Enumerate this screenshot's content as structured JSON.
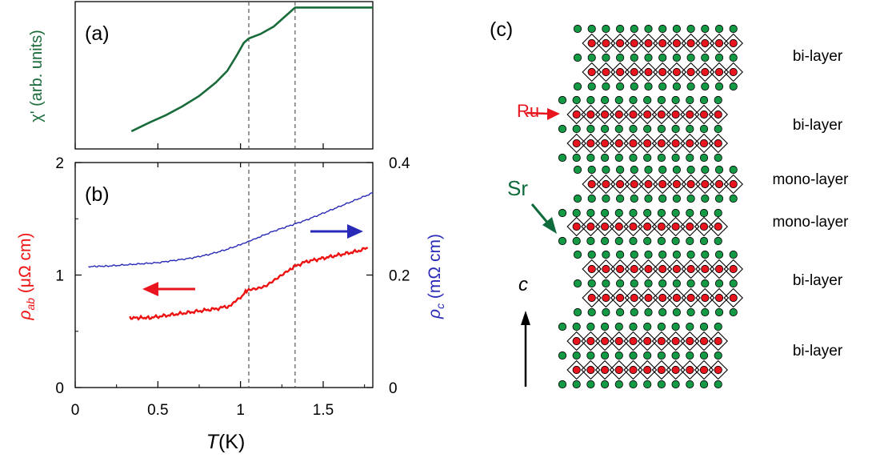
{
  "panels": {
    "a": {
      "label": "(a)",
      "ylabel": "χ' (arb. units)"
    },
    "b": {
      "label": "(b)",
      "ylabel_left_sym": "ρ",
      "ylabel_left_sub": "ab",
      "ylabel_left_unit": " (μΩ cm)",
      "ylabel_right_sym": "ρ",
      "ylabel_right_sub": "c",
      "ylabel_right_unit": " (mΩ cm)"
    },
    "c": {
      "label": "(c)"
    }
  },
  "xaxis": {
    "label_italic": "T",
    "label_unit": "(K)"
  },
  "colors": {
    "chi": "#1a6b3a",
    "rho_ab": "#ee1111",
    "rho_c": "#2a2ab8",
    "ru": "#e8141e",
    "sr": "#149a45",
    "sr_label": "#0f6b3c",
    "dashed": "#555555"
  },
  "chart_data": [
    {
      "type": "line",
      "title": "(a)",
      "ylabel": "χ' (arb. units)",
      "xlim": [
        0,
        1.8
      ],
      "ylim": [
        0,
        1
      ],
      "y_ticks_shown": false,
      "series": [
        {
          "x": [
            0.34,
            0.45,
            0.55,
            0.65,
            0.75,
            0.85,
            0.92,
            0.98,
            1.02,
            1.05,
            1.12,
            1.2,
            1.25,
            1.3,
            1.32,
            1.33,
            1.45,
            1.6,
            1.8
          ],
          "y": [
            0.12,
            0.18,
            0.23,
            0.29,
            0.36,
            0.45,
            0.53,
            0.64,
            0.72,
            0.75,
            0.78,
            0.83,
            0.88,
            0.93,
            0.95,
            0.96,
            0.96,
            0.96,
            0.96
          ]
        }
      ],
      "vlines": [
        1.05,
        1.33
      ]
    },
    {
      "type": "line",
      "title": "(b)",
      "xlabel": "T(K)",
      "xlim": [
        0,
        1.8
      ],
      "x_ticks": [
        0,
        0.5,
        1,
        1.5
      ],
      "y_left": {
        "label": "ρab (μΩ cm)",
        "ylim": [
          0,
          2
        ],
        "ticks": [
          0,
          1,
          2
        ]
      },
      "y_right": {
        "label": "ρc (mΩ cm)",
        "ylim": [
          0,
          0.4
        ],
        "ticks": [
          0,
          0.2,
          0.4
        ]
      },
      "series": [
        {
          "name": "ρab",
          "axis": "left",
          "x": [
            0.33,
            0.45,
            0.55,
            0.65,
            0.75,
            0.85,
            0.92,
            0.96,
            1.0,
            1.03,
            1.05,
            1.1,
            1.15,
            1.2,
            1.25,
            1.3,
            1.33,
            1.4,
            1.5,
            1.6,
            1.7,
            1.77
          ],
          "y": [
            0.62,
            0.62,
            0.64,
            0.66,
            0.68,
            0.7,
            0.72,
            0.75,
            0.8,
            0.85,
            0.87,
            0.88,
            0.9,
            0.95,
            1.0,
            1.05,
            1.08,
            1.12,
            1.15,
            1.18,
            1.21,
            1.24
          ]
        },
        {
          "name": "ρc",
          "axis": "right",
          "x": [
            0.08,
            0.2,
            0.3,
            0.4,
            0.5,
            0.6,
            0.7,
            0.8,
            0.9,
            1.0,
            1.05,
            1.1,
            1.2,
            1.3,
            1.4,
            1.5,
            1.6,
            1.7,
            1.8
          ],
          "y": [
            0.215,
            0.216,
            0.218,
            0.22,
            0.222,
            0.226,
            0.23,
            0.236,
            0.244,
            0.254,
            0.26,
            0.266,
            0.278,
            0.288,
            0.298,
            0.31,
            0.322,
            0.334,
            0.346
          ]
        }
      ],
      "vlines": [
        1.05,
        1.33
      ]
    }
  ],
  "structure": {
    "layers": [
      {
        "label": "bi-layer"
      },
      {
        "label": "bi-layer"
      },
      {
        "label": "mono-layer"
      },
      {
        "label": "mono-layer"
      },
      {
        "label": "bi-layer"
      },
      {
        "label": "bi-layer"
      }
    ],
    "ru_label": "Ru",
    "sr_label": "Sr",
    "axis_label": "c"
  }
}
